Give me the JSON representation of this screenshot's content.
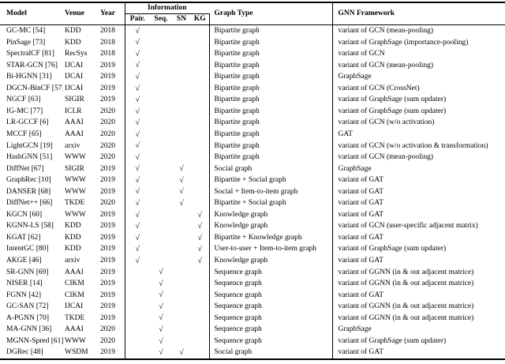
{
  "table": {
    "header": {
      "model": "Model",
      "venue": "Venue",
      "year": "Year",
      "information": "Information",
      "info_subcols": [
        "Pair.",
        "Seq.",
        "SN",
        "KG"
      ],
      "graph_type": "Graph Type",
      "gnn_framework": "GNN Framework"
    },
    "checkmark": "√",
    "rows": [
      {
        "model": "GC-MC [54]",
        "venue": "KDD",
        "year": "2018",
        "checks": [
          1,
          0,
          0,
          0
        ],
        "graph_type": "Bipartite graph",
        "framework": "variant of GCN (mean-pooling)"
      },
      {
        "model": "PinSage [73]",
        "venue": "KDD",
        "year": "2018",
        "checks": [
          1,
          0,
          0,
          0
        ],
        "graph_type": "Bipartite graph",
        "framework": "variant of GraphSage (importance-pooling)"
      },
      {
        "model": "SpectralCF [81]",
        "venue": "RecSys",
        "year": "2018",
        "checks": [
          1,
          0,
          0,
          0
        ],
        "graph_type": "Bipartite graph",
        "framework": "variant of GCN"
      },
      {
        "model": "STAR-GCN [76]",
        "venue": "IJCAI",
        "year": "2019",
        "checks": [
          1,
          0,
          0,
          0
        ],
        "graph_type": "Bipartite graph",
        "framework": "variant of GCN (mean-pooling)"
      },
      {
        "model": "Bi-HGNN [31]",
        "venue": "IJCAI",
        "year": "2019",
        "checks": [
          1,
          0,
          0,
          0
        ],
        "graph_type": "Bipartite graph",
        "framework": "GraphSage"
      },
      {
        "model": "DGCN-BinCF [57]",
        "venue": "IJCAI",
        "year": "2019",
        "checks": [
          1,
          0,
          0,
          0
        ],
        "graph_type": "Bipartite graph",
        "framework": "variant of GCN (CrossNet)"
      },
      {
        "model": "NGCF [63]",
        "venue": "SIGIR",
        "year": "2019",
        "checks": [
          1,
          0,
          0,
          0
        ],
        "graph_type": "Bipartite graph",
        "framework": "variant of GraphSage (sum updater)"
      },
      {
        "model": "IG-MC [77]",
        "venue": "ICLR",
        "year": "2020",
        "checks": [
          1,
          0,
          0,
          0
        ],
        "graph_type": "Bipartite graph",
        "framework": "variant of GraphSage (sum updater)"
      },
      {
        "model": "LR-GCCF [6]",
        "venue": "AAAI",
        "year": "2020",
        "checks": [
          1,
          0,
          0,
          0
        ],
        "graph_type": "Bipartite graph",
        "framework": "variant of GCN (w/o activation)"
      },
      {
        "model": "MCCF [65]",
        "venue": "AAAI",
        "year": "2020",
        "checks": [
          1,
          0,
          0,
          0
        ],
        "graph_type": "Bipartite graph",
        "framework": "GAT"
      },
      {
        "model": "LightGCN [19]",
        "venue": "arxiv",
        "year": "2020",
        "checks": [
          1,
          0,
          0,
          0
        ],
        "graph_type": "Bipartite graph",
        "framework": "variant of GCN (w/o activation & transformation)"
      },
      {
        "model": "HashGNN [51]",
        "venue": "WWW",
        "year": "2020",
        "checks": [
          1,
          0,
          0,
          0
        ],
        "graph_type": "Bipartite graph",
        "framework": "variant of GCN (mean-pooling)"
      },
      {
        "model": "DiffNet [67]",
        "venue": "SIGIR",
        "year": "2019",
        "checks": [
          1,
          0,
          1,
          0
        ],
        "graph_type": "Social graph",
        "framework": "GraphSage"
      },
      {
        "model": "GraphRec [10]",
        "venue": "WWW",
        "year": "2019",
        "checks": [
          1,
          0,
          1,
          0
        ],
        "graph_type": "Bipartite + Social graph",
        "framework": "variant of GAT"
      },
      {
        "model": "DANSER [68]",
        "venue": "WWW",
        "year": "2019",
        "checks": [
          1,
          0,
          1,
          0
        ],
        "graph_type": "Social + Item-to-item graph",
        "framework": "variant of GAT"
      },
      {
        "model": "DiffNet++ [66]",
        "venue": "TKDE",
        "year": "2020",
        "checks": [
          1,
          0,
          1,
          0
        ],
        "graph_type": "Bipartite + Social graph",
        "framework": "variant of GAT"
      },
      {
        "model": "KGCN [60]",
        "venue": "WWW",
        "year": "2019",
        "checks": [
          1,
          0,
          0,
          1
        ],
        "graph_type": "Knowledge graph",
        "framework": "variant of GAT"
      },
      {
        "model": "KGNN-LS [58]",
        "venue": "KDD",
        "year": "2019",
        "checks": [
          1,
          0,
          0,
          1
        ],
        "graph_type": "Knowledge graph",
        "framework": "variant of GCN (user-specific adjacent matrix)"
      },
      {
        "model": "KGAT [62]",
        "venue": "KDD",
        "year": "2019",
        "checks": [
          1,
          0,
          0,
          1
        ],
        "graph_type": "Bipartite + Knowledge graph",
        "framework": "variant of GAT"
      },
      {
        "model": "IntentGC [80]",
        "venue": "KDD",
        "year": "2019",
        "checks": [
          1,
          0,
          0,
          1
        ],
        "graph_type": "User-to-user + Item-to-item graph",
        "framework": "variant of GraphSage (sum updater)"
      },
      {
        "model": "AKGE [46]",
        "venue": "arxiv",
        "year": "2019",
        "checks": [
          1,
          0,
          0,
          1
        ],
        "graph_type": "Knowledge graph",
        "framework": "variant of GAT"
      },
      {
        "model": "SR-GNN [69]",
        "venue": "AAAI",
        "year": "2019",
        "checks": [
          0,
          1,
          0,
          0
        ],
        "graph_type": "Sequence graph",
        "framework": "variant of GGNN (in & out adjacent matrice)"
      },
      {
        "model": "NISER [14]",
        "venue": "CIKM",
        "year": "2019",
        "checks": [
          0,
          1,
          0,
          0
        ],
        "graph_type": "Sequence graph",
        "framework": "variant of GGNN (in & out adjacent matrice)"
      },
      {
        "model": "FGNN [42]",
        "venue": "CIKM",
        "year": "2019",
        "checks": [
          0,
          1,
          0,
          0
        ],
        "graph_type": "Sequence graph",
        "framework": "variant of GAT"
      },
      {
        "model": "GC-SAN [72]",
        "venue": "IJCAI",
        "year": "2019",
        "checks": [
          0,
          1,
          0,
          0
        ],
        "graph_type": "Sequence graph",
        "framework": "variant of GGNN (in & out adjacent matrice)"
      },
      {
        "model": "A-PGNN [70]",
        "venue": "TKDE",
        "year": "2019",
        "checks": [
          0,
          1,
          0,
          0
        ],
        "graph_type": "Sequence graph",
        "framework": "variant of GGNN (in & out adjacent matrice)"
      },
      {
        "model": "MA-GNN [36]",
        "venue": "AAAI",
        "year": "2020",
        "checks": [
          0,
          1,
          0,
          0
        ],
        "graph_type": "Sequence graph",
        "framework": "GraphSage"
      },
      {
        "model": "MGNN-Spred [61]",
        "venue": "WWW",
        "year": "2020",
        "checks": [
          0,
          1,
          0,
          0
        ],
        "graph_type": "Sequence graph",
        "framework": "variant of GraphSage (sum updater)"
      },
      {
        "model": "DGRec [48]",
        "venue": "WSDM",
        "year": "2019",
        "checks": [
          0,
          1,
          1,
          0
        ],
        "graph_type": "Social graph",
        "framework": "variant of GAT"
      }
    ]
  },
  "colors": {
    "text": "#000000",
    "background": "#ffffff",
    "rule": "#000000"
  }
}
